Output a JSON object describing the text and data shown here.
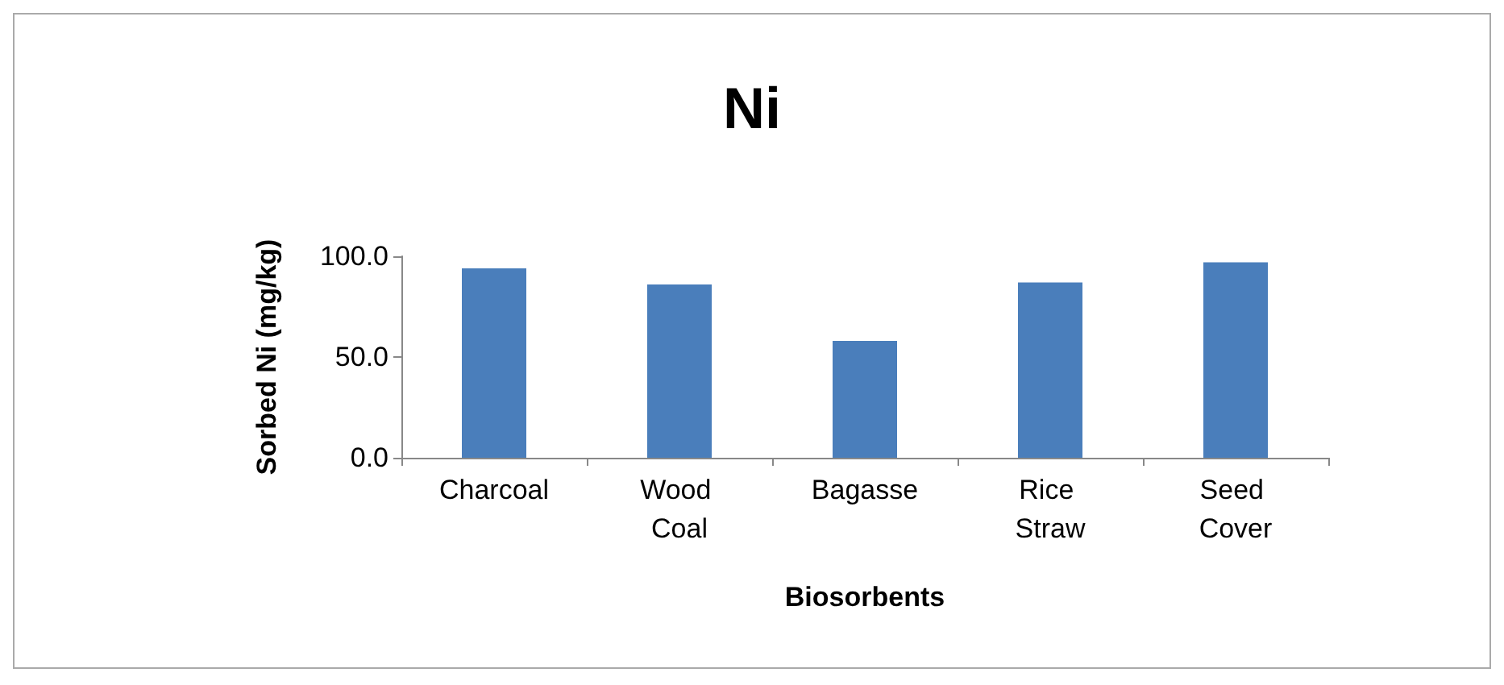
{
  "chart_data": {
    "type": "bar",
    "title": "Ni",
    "xlabel": "Biosorbents",
    "ylabel": "Sorbed Ni (mg/kg)",
    "categories": [
      "Charcoal",
      "Wood Coal",
      "Bagasse",
      "Rice Straw",
      "Seed Cover"
    ],
    "values": [
      94,
      86,
      58,
      87,
      97
    ],
    "color": "#4a7ebb",
    "ylim": [
      0,
      100
    ],
    "yticks": [
      {
        "value": 0,
        "label": "0.0"
      },
      {
        "value": 50,
        "label": "50.0"
      },
      {
        "value": 100,
        "label": "100.0"
      }
    ],
    "grid": false
  }
}
